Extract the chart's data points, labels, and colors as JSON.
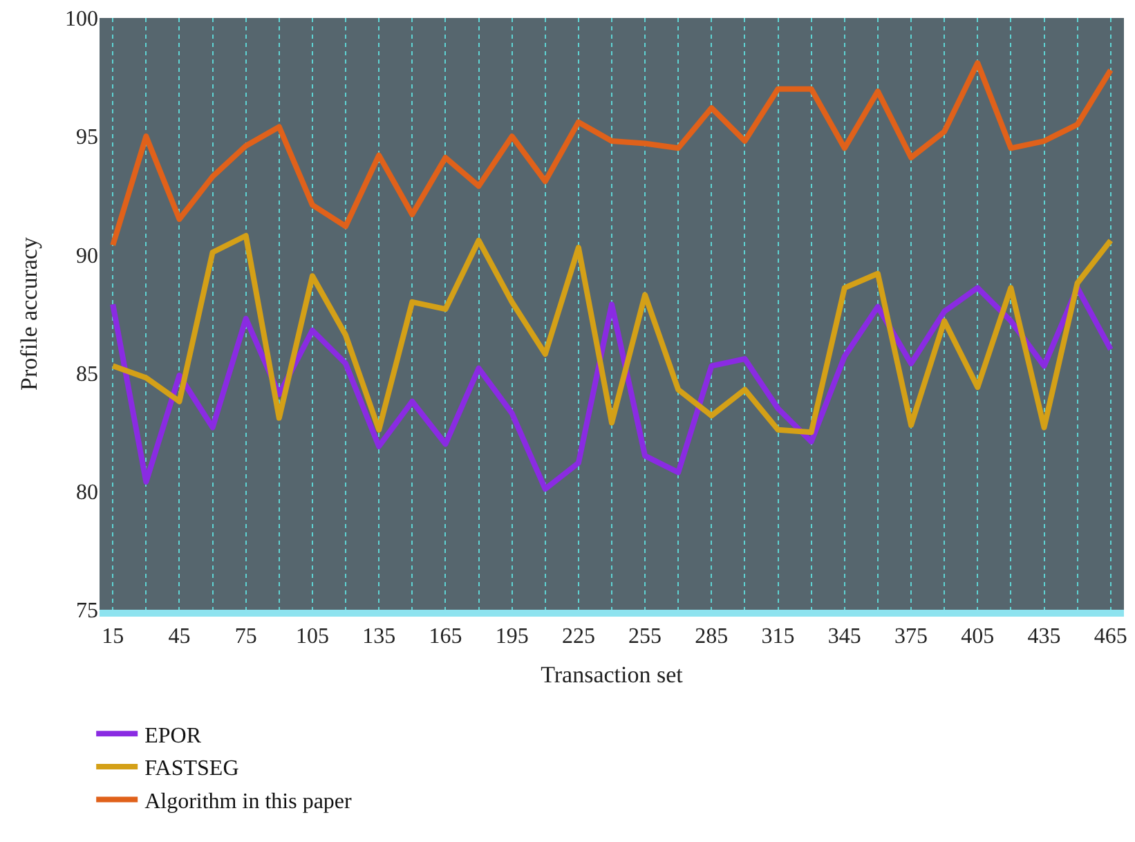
{
  "chart_data": {
    "type": "line",
    "xlabel": "Transaction set",
    "ylabel": "Profile accuracy",
    "x": [
      15,
      30,
      45,
      60,
      75,
      90,
      105,
      120,
      135,
      150,
      165,
      180,
      195,
      210,
      225,
      240,
      255,
      270,
      285,
      300,
      315,
      330,
      345,
      360,
      375,
      390,
      405,
      420,
      435,
      450,
      465
    ],
    "series": [
      {
        "name": "EPOR",
        "color": "#8a2be2",
        "values": [
          87.9,
          80.4,
          84.9,
          82.7,
          87.3,
          84.1,
          86.8,
          85.4,
          81.9,
          83.8,
          82.0,
          85.2,
          83.3,
          80.1,
          81.2,
          87.9,
          81.5,
          80.8,
          85.3,
          85.6,
          83.5,
          82.1,
          85.7,
          87.8,
          85.4,
          87.6,
          88.6,
          87.2,
          85.3,
          88.6,
          86.0
        ]
      },
      {
        "name": "FASTSEG",
        "color": "#d4a017",
        "values": [
          85.3,
          84.8,
          83.8,
          90.1,
          90.8,
          83.1,
          89.1,
          86.6,
          82.6,
          88.0,
          87.7,
          90.6,
          88.0,
          85.8,
          90.3,
          82.9,
          88.3,
          84.3,
          83.2,
          84.3,
          82.6,
          82.5,
          88.6,
          89.2,
          82.8,
          87.2,
          84.4,
          88.6,
          82.7,
          88.8,
          90.6
        ]
      },
      {
        "name": "Algorithm in this paper",
        "color": "#e0611a",
        "values": [
          90.4,
          95.0,
          91.5,
          93.3,
          94.6,
          95.4,
          92.1,
          91.2,
          94.2,
          91.7,
          94.1,
          92.9,
          95.0,
          93.1,
          95.6,
          94.8,
          94.7,
          94.5,
          96.2,
          94.8,
          97.0,
          97.0,
          94.5,
          96.9,
          94.1,
          95.2,
          98.1,
          94.5,
          94.8,
          95.5,
          97.8
        ]
      }
    ],
    "xlim": [
      9,
      471
    ],
    "xticks": [
      15,
      {
        "value": 30,
        "label": null
      },
      45,
      {
        "value": 60,
        "label": null
      },
      75,
      {
        "value": 90,
        "label": null
      },
      105,
      {
        "value": 120,
        "label": null
      },
      135,
      {
        "value": 150,
        "label": null
      },
      165,
      {
        "value": 180,
        "label": null
      },
      195,
      {
        "value": 210,
        "label": null
      },
      225,
      {
        "value": 240,
        "label": null
      },
      255,
      {
        "value": 270,
        "label": null
      },
      285,
      {
        "value": 300,
        "label": null
      },
      315,
      {
        "value": 330,
        "label": null
      },
      345,
      {
        "value": 360,
        "label": null
      },
      375,
      {
        "value": 390,
        "label": null
      },
      405,
      {
        "value": 420,
        "label": null
      },
      435,
      {
        "value": 450,
        "label": null
      },
      465
    ],
    "ylim": [
      75,
      100
    ],
    "yticks": [
      75,
      80,
      85,
      90,
      95,
      100
    ],
    "grid": "x",
    "legend": "bottom left",
    "marker": "none",
    "line_style": "solid"
  }
}
